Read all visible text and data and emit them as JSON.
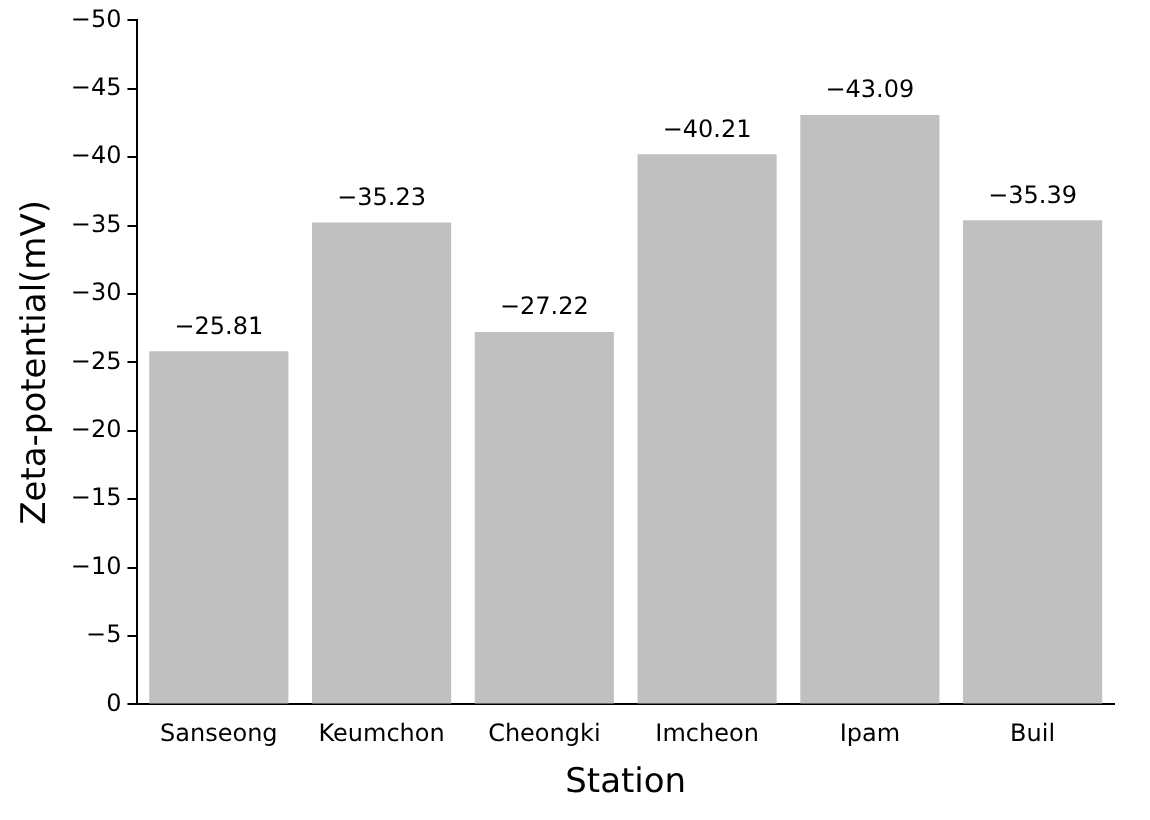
{
  "chart_data": {
    "type": "bar",
    "xlabel": "Station",
    "ylabel": "Zeta-potential(mV)",
    "categories": [
      "Sanseong",
      "Keumchon",
      "Cheongki",
      "Imcheon",
      "Ipam",
      "Buil"
    ],
    "values": [
      -25.81,
      -35.23,
      -27.22,
      -40.21,
      -43.09,
      -35.39
    ],
    "value_labels": [
      "−25.81",
      "−35.23",
      "−27.22",
      "−40.21",
      "−43.09",
      "−35.39"
    ],
    "color": "#c0c0c0",
    "ylim": [
      0,
      -50
    ],
    "yticks": [
      0,
      {
        "value": -5,
        "label": "−5"
      },
      {
        "value": -10,
        "label": "−10"
      },
      {
        "value": -15,
        "label": "−15"
      },
      {
        "value": -20,
        "label": "−20"
      },
      {
        "value": -25,
        "label": "−25"
      },
      {
        "value": -30,
        "label": "−30"
      },
      {
        "value": -35,
        "label": "−35"
      },
      {
        "value": -40,
        "label": "−40"
      },
      {
        "value": -45,
        "label": "−45"
      },
      {
        "value": -50,
        "label": "−50"
      }
    ],
    "grid": false,
    "legend": false
  }
}
